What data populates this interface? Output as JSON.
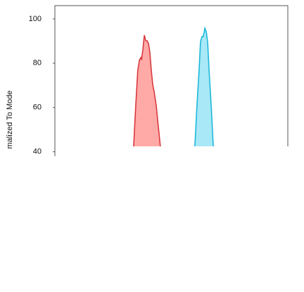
{
  "chart_data": {
    "type": "area",
    "y_label": "malized To Mode",
    "ylim": [
      38,
      106
    ],
    "yticks": [
      40,
      60,
      80,
      100
    ],
    "xlim": [
      0,
      100
    ],
    "series": [
      {
        "color": "#d9393f",
        "fill": "#ffaaa6",
        "x": [
          33.8,
          34.7,
          35.6,
          36.3,
          36.9,
          37.2,
          37.8,
          38.4,
          39.0,
          39.6,
          40.2,
          40.8,
          41.4,
          42.0,
          42.6,
          43.5,
          44.4,
          45.3
        ],
        "values": [
          42.4,
          60.9,
          76.8,
          81.5,
          82.5,
          81.5,
          86.3,
          92.7,
          90.1,
          90.1,
          88.8,
          84.7,
          76.8,
          70.4,
          67.2,
          60.9,
          51.3,
          42.4
        ]
      },
      {
        "color": "#1eb8db",
        "fill": "#a8e8f7",
        "x": [
          60.1,
          61.0,
          61.9,
          62.5,
          63.1,
          63.7,
          64.4,
          65.0,
          65.6,
          66.2,
          67.1,
          68.0
        ],
        "values": [
          42.4,
          60.9,
          76.8,
          89.5,
          92.0,
          92.0,
          95.8,
          94.2,
          89.5,
          76.8,
          60.9,
          42.4
        ]
      }
    ]
  }
}
